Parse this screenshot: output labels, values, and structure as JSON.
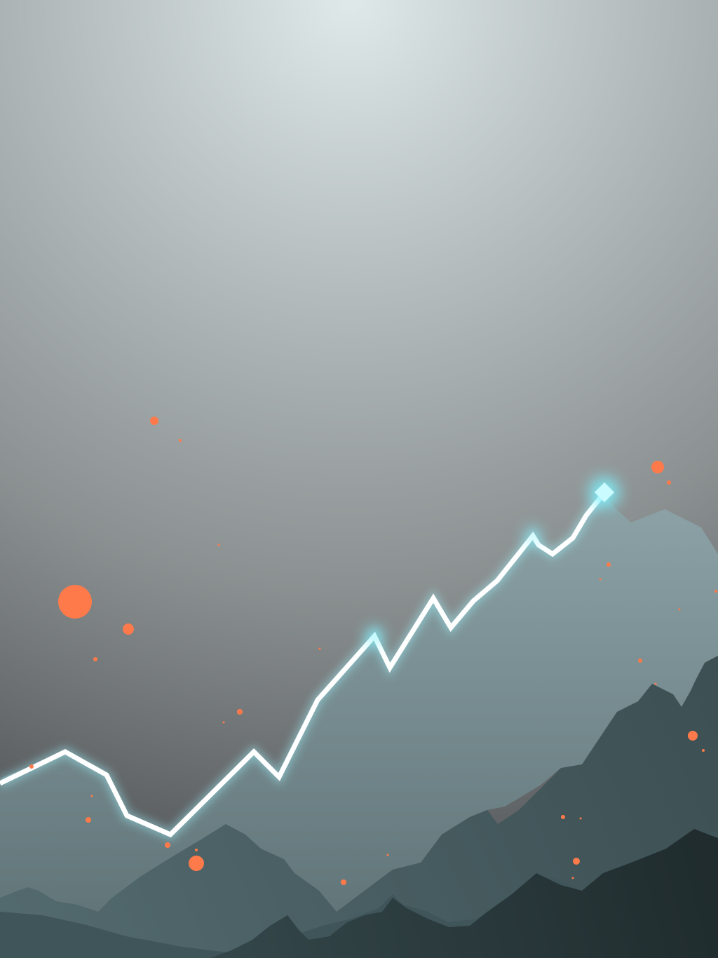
{
  "scene": {
    "description_free": true,
    "colors": {
      "sky_glow": "#dfe9ea",
      "sky_mid": "#a3aaab",
      "sky_low": "#63676a",
      "mountain_far": "#7e9498",
      "mountain_mid": "#5f767a",
      "mountain_near": "#43585c",
      "mountain_front": "#2b3a3d",
      "trend_line": "#ffffff",
      "trend_glow": "#8ff4ff",
      "particles": "#ff7a4a"
    },
    "icons": {
      "trend_line": "rising-zigzag-line",
      "trend_head": "diamond-marker-icon",
      "particles": "ember-dots"
    }
  }
}
